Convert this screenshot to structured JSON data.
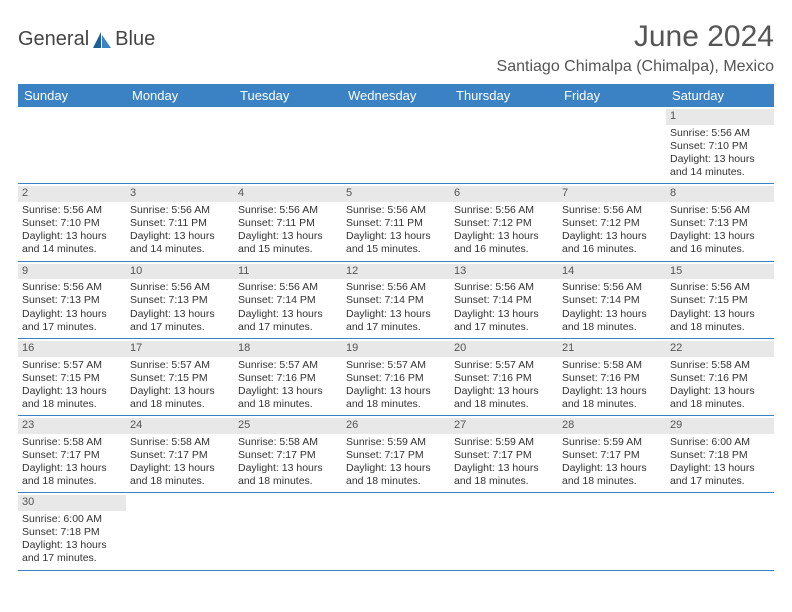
{
  "logo": {
    "text1": "General",
    "text2": "Blue"
  },
  "title": "June 2024",
  "location": "Santiago Chimalpa (Chimalpa), Mexico",
  "colors": {
    "header_bg": "#3b82c4",
    "header_fg": "#ffffff",
    "daynum_bg": "#e8e8e8",
    "border": "#3b82c4",
    "text": "#333333",
    "title_color": "#555555"
  },
  "fonts": {
    "title_size_pt": 30,
    "location_size_pt": 16,
    "header_size_pt": 13,
    "cell_size_pt": 10.5,
    "daynum_size_pt": 11
  },
  "weekdays": [
    "Sunday",
    "Monday",
    "Tuesday",
    "Wednesday",
    "Thursday",
    "Friday",
    "Saturday"
  ],
  "weeks": [
    [
      null,
      null,
      null,
      null,
      null,
      null,
      {
        "n": "1",
        "sunrise": "5:56 AM",
        "sunset": "7:10 PM",
        "daylight": "13 hours and 14 minutes."
      }
    ],
    [
      {
        "n": "2",
        "sunrise": "5:56 AM",
        "sunset": "7:10 PM",
        "daylight": "13 hours and 14 minutes."
      },
      {
        "n": "3",
        "sunrise": "5:56 AM",
        "sunset": "7:11 PM",
        "daylight": "13 hours and 14 minutes."
      },
      {
        "n": "4",
        "sunrise": "5:56 AM",
        "sunset": "7:11 PM",
        "daylight": "13 hours and 15 minutes."
      },
      {
        "n": "5",
        "sunrise": "5:56 AM",
        "sunset": "7:11 PM",
        "daylight": "13 hours and 15 minutes."
      },
      {
        "n": "6",
        "sunrise": "5:56 AM",
        "sunset": "7:12 PM",
        "daylight": "13 hours and 16 minutes."
      },
      {
        "n": "7",
        "sunrise": "5:56 AM",
        "sunset": "7:12 PM",
        "daylight": "13 hours and 16 minutes."
      },
      {
        "n": "8",
        "sunrise": "5:56 AM",
        "sunset": "7:13 PM",
        "daylight": "13 hours and 16 minutes."
      }
    ],
    [
      {
        "n": "9",
        "sunrise": "5:56 AM",
        "sunset": "7:13 PM",
        "daylight": "13 hours and 17 minutes."
      },
      {
        "n": "10",
        "sunrise": "5:56 AM",
        "sunset": "7:13 PM",
        "daylight": "13 hours and 17 minutes."
      },
      {
        "n": "11",
        "sunrise": "5:56 AM",
        "sunset": "7:14 PM",
        "daylight": "13 hours and 17 minutes."
      },
      {
        "n": "12",
        "sunrise": "5:56 AM",
        "sunset": "7:14 PM",
        "daylight": "13 hours and 17 minutes."
      },
      {
        "n": "13",
        "sunrise": "5:56 AM",
        "sunset": "7:14 PM",
        "daylight": "13 hours and 17 minutes."
      },
      {
        "n": "14",
        "sunrise": "5:56 AM",
        "sunset": "7:14 PM",
        "daylight": "13 hours and 18 minutes."
      },
      {
        "n": "15",
        "sunrise": "5:56 AM",
        "sunset": "7:15 PM",
        "daylight": "13 hours and 18 minutes."
      }
    ],
    [
      {
        "n": "16",
        "sunrise": "5:57 AM",
        "sunset": "7:15 PM",
        "daylight": "13 hours and 18 minutes."
      },
      {
        "n": "17",
        "sunrise": "5:57 AM",
        "sunset": "7:15 PM",
        "daylight": "13 hours and 18 minutes."
      },
      {
        "n": "18",
        "sunrise": "5:57 AM",
        "sunset": "7:16 PM",
        "daylight": "13 hours and 18 minutes."
      },
      {
        "n": "19",
        "sunrise": "5:57 AM",
        "sunset": "7:16 PM",
        "daylight": "13 hours and 18 minutes."
      },
      {
        "n": "20",
        "sunrise": "5:57 AM",
        "sunset": "7:16 PM",
        "daylight": "13 hours and 18 minutes."
      },
      {
        "n": "21",
        "sunrise": "5:58 AM",
        "sunset": "7:16 PM",
        "daylight": "13 hours and 18 minutes."
      },
      {
        "n": "22",
        "sunrise": "5:58 AM",
        "sunset": "7:16 PM",
        "daylight": "13 hours and 18 minutes."
      }
    ],
    [
      {
        "n": "23",
        "sunrise": "5:58 AM",
        "sunset": "7:17 PM",
        "daylight": "13 hours and 18 minutes."
      },
      {
        "n": "24",
        "sunrise": "5:58 AM",
        "sunset": "7:17 PM",
        "daylight": "13 hours and 18 minutes."
      },
      {
        "n": "25",
        "sunrise": "5:58 AM",
        "sunset": "7:17 PM",
        "daylight": "13 hours and 18 minutes."
      },
      {
        "n": "26",
        "sunrise": "5:59 AM",
        "sunset": "7:17 PM",
        "daylight": "13 hours and 18 minutes."
      },
      {
        "n": "27",
        "sunrise": "5:59 AM",
        "sunset": "7:17 PM",
        "daylight": "13 hours and 18 minutes."
      },
      {
        "n": "28",
        "sunrise": "5:59 AM",
        "sunset": "7:17 PM",
        "daylight": "13 hours and 18 minutes."
      },
      {
        "n": "29",
        "sunrise": "6:00 AM",
        "sunset": "7:18 PM",
        "daylight": "13 hours and 17 minutes."
      }
    ],
    [
      {
        "n": "30",
        "sunrise": "6:00 AM",
        "sunset": "7:18 PM",
        "daylight": "13 hours and 17 minutes."
      },
      null,
      null,
      null,
      null,
      null,
      null
    ]
  ],
  "labels": {
    "sunrise": "Sunrise:",
    "sunset": "Sunset:",
    "daylight": "Daylight:"
  }
}
